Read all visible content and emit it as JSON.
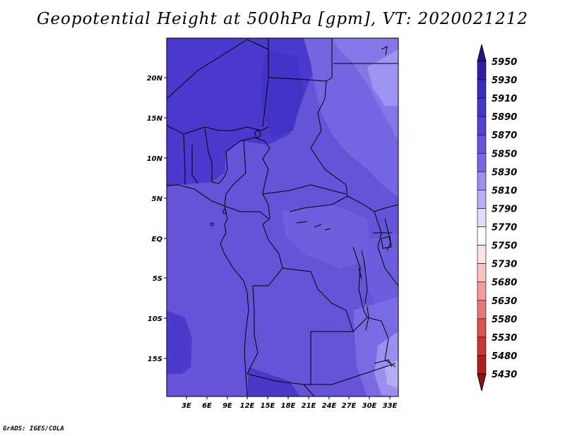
{
  "title": "Geopotential Height at 500hPa [gpm], VT: 2020021212",
  "footer": "GrADS: IGES/COLA",
  "chart_data": {
    "type": "heatmap",
    "variable": "Geopotential Height at 500hPa",
    "units": "gpm",
    "valid_time": "2020021212",
    "lon_range": [
      0,
      34
    ],
    "lat_range": [
      -20,
      25
    ],
    "x_ticks": [
      "3E",
      "6E",
      "9E",
      "12E",
      "15E",
      "18E",
      "21E",
      "24E",
      "27E",
      "30E",
      "33E"
    ],
    "y_ticks": [
      "20N",
      "15N",
      "10N",
      "5N",
      "EQ",
      "5S",
      "10S",
      "15S"
    ],
    "legend_levels": [
      "5950",
      "5930",
      "5910",
      "5890",
      "5870",
      "5850",
      "5830",
      "5810",
      "5790",
      "5770",
      "5750",
      "5730",
      "5680",
      "5630",
      "5580",
      "5530",
      "5480",
      "5430"
    ],
    "legend_colors": [
      "#24138a",
      "#2f1ea6",
      "#3b2cbf",
      "#4637ca",
      "#5443d2",
      "#6555d8",
      "#7967e2",
      "#9d8ff2",
      "#b9b1f5",
      "#e2dcfb",
      "#ffffff",
      "#fde3e3",
      "#f9c3c3",
      "#f19d9d",
      "#e67a7a",
      "#d95353",
      "#c93434",
      "#b11c1c",
      "#8e1010"
    ],
    "dominant_range": [
      "5850",
      "5890"
    ]
  }
}
